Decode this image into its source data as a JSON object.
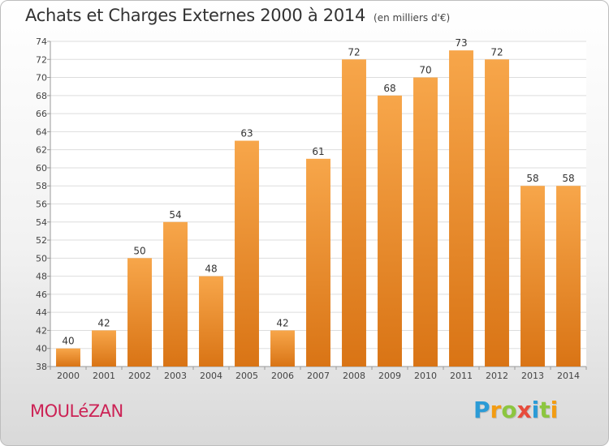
{
  "header": {
    "title": "Achats et Charges Externes 2000 à 2014",
    "unit": "(en milliers d'€)"
  },
  "footer": {
    "commune": "MOULéZAN",
    "logo_letters": [
      {
        "char": "P",
        "color": "#2b9bd6"
      },
      {
        "char": "r",
        "color": "#f39c12"
      },
      {
        "char": "o",
        "color": "#8cc63f"
      },
      {
        "char": "x",
        "color": "#e74c3c"
      },
      {
        "char": "i",
        "color": "#2b9bd6"
      },
      {
        "char": "t",
        "color": "#8cc63f"
      },
      {
        "char": "i",
        "color": "#f39c12"
      }
    ]
  },
  "chart_data": {
    "type": "bar",
    "title": "Achats et Charges Externes 2000 à 2014",
    "subtitle": "(en milliers d'€)",
    "xlabel": "",
    "ylabel": "",
    "categories": [
      "2000",
      "2001",
      "2002",
      "2003",
      "2004",
      "2005",
      "2006",
      "2007",
      "2008",
      "2009",
      "2010",
      "2011",
      "2012",
      "2013",
      "2014"
    ],
    "values": [
      40,
      42,
      50,
      54,
      48,
      63,
      42,
      61,
      72,
      68,
      70,
      73,
      72,
      58,
      58
    ],
    "ylim": [
      38,
      74
    ],
    "yticks": [
      38,
      40,
      42,
      44,
      46,
      48,
      50,
      52,
      54,
      56,
      58,
      60,
      62,
      64,
      66,
      68,
      70,
      72,
      74
    ],
    "grid": true,
    "data_labels": true,
    "bar_color_top": "#f7a64a",
    "bar_color_bottom": "#d97415",
    "grid_color": "#dddddd"
  }
}
